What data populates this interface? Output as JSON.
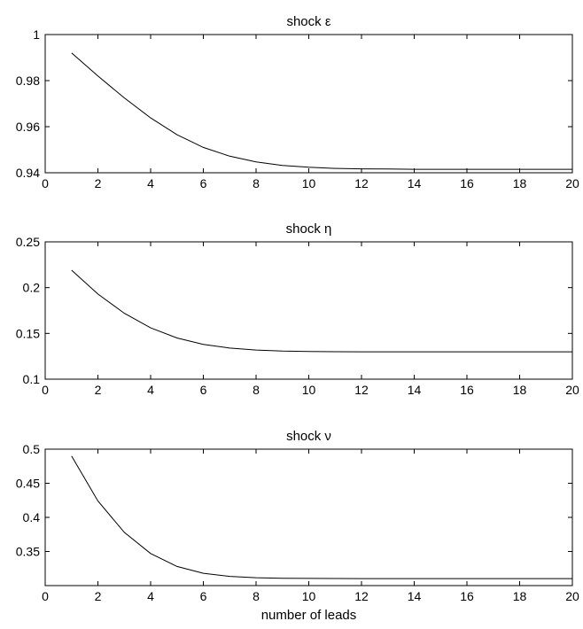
{
  "chart_data": [
    {
      "type": "line",
      "title": "shock ε",
      "xlabel": "",
      "ylabel": "",
      "xlim": [
        0,
        20
      ],
      "ylim": [
        0.94,
        1
      ],
      "xticks": [
        0,
        2,
        4,
        6,
        8,
        10,
        12,
        14,
        16,
        18,
        20
      ],
      "yticks": [
        0.94,
        0.96,
        0.98,
        1
      ],
      "ytick_labels": [
        "0.94",
        "0.96",
        "0.98",
        "1"
      ],
      "grid": false,
      "series": [
        {
          "x": [
            1,
            2,
            3,
            4,
            5,
            6,
            7,
            8,
            9,
            10,
            11,
            12,
            13,
            14,
            15,
            16,
            17,
            18,
            19,
            20
          ],
          "values": [
            0.992,
            0.982,
            0.9725,
            0.9638,
            0.9565,
            0.951,
            0.9472,
            0.9447,
            0.9432,
            0.9424,
            0.9419,
            0.9417,
            0.9416,
            0.9415,
            0.9415,
            0.9415,
            0.9415,
            0.9415,
            0.9415,
            0.9415
          ]
        }
      ]
    },
    {
      "type": "line",
      "title": "shock η",
      "xlabel": "",
      "ylabel": "",
      "xlim": [
        0,
        20
      ],
      "ylim": [
        0.1,
        0.25
      ],
      "xticks": [
        0,
        2,
        4,
        6,
        8,
        10,
        12,
        14,
        16,
        18,
        20
      ],
      "yticks": [
        0.1,
        0.15,
        0.2,
        0.25
      ],
      "ytick_labels": [
        "0.1",
        "0.15",
        "0.2",
        "0.25"
      ],
      "grid": false,
      "series": [
        {
          "x": [
            1,
            2,
            3,
            4,
            5,
            6,
            7,
            8,
            9,
            10,
            11,
            12,
            13,
            14,
            15,
            16,
            17,
            18,
            19,
            20
          ],
          "values": [
            0.219,
            0.193,
            0.172,
            0.156,
            0.145,
            0.138,
            0.134,
            0.1318,
            0.1307,
            0.1302,
            0.13,
            0.1299,
            0.1299,
            0.1299,
            0.1299,
            0.1299,
            0.1299,
            0.1299,
            0.1299,
            0.1299
          ]
        }
      ]
    },
    {
      "type": "line",
      "title": "shock ν",
      "xlabel": "number of leads",
      "ylabel": "",
      "xlim": [
        0,
        20
      ],
      "ylim": [
        0.3,
        0.5
      ],
      "xticks": [
        0,
        2,
        4,
        6,
        8,
        10,
        12,
        14,
        16,
        18,
        20
      ],
      "yticks": [
        0.35,
        0.4,
        0.45,
        0.5
      ],
      "ytick_labels": [
        "0.35",
        "0.4",
        "0.45",
        "0.5"
      ],
      "grid": false,
      "series": [
        {
          "x": [
            1,
            2,
            3,
            4,
            5,
            6,
            7,
            8,
            9,
            10,
            11,
            12,
            13,
            14,
            15,
            16,
            17,
            18,
            19,
            20
          ],
          "values": [
            0.49,
            0.424,
            0.378,
            0.347,
            0.328,
            0.318,
            0.3135,
            0.3115,
            0.3108,
            0.3105,
            0.3104,
            0.3103,
            0.3103,
            0.3103,
            0.3103,
            0.3103,
            0.3103,
            0.3103,
            0.3103,
            0.3103
          ]
        }
      ]
    }
  ]
}
